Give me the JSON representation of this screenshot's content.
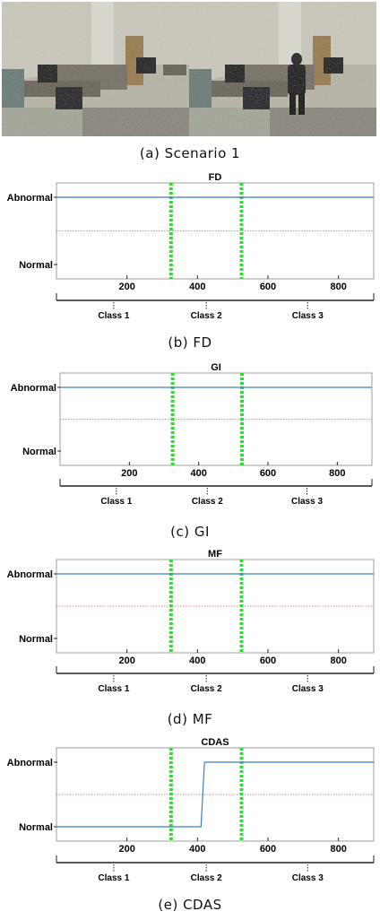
{
  "photos": {
    "caption": "(a) Scenario 1",
    "scene": "office-surveillance-frames",
    "frames": 2
  },
  "colors": {
    "signal": "#3a7fc1",
    "threshold": "#e06060",
    "class_boundary": "#2ee02e",
    "axis": "#222222"
  },
  "chart_data": [
    {
      "type": "line",
      "title": "FD",
      "caption": "(b) FD",
      "y_categories": [
        "Normal",
        "Abnormal"
      ],
      "xlim": [
        0,
        900
      ],
      "xticks": [
        200,
        400,
        600,
        800
      ],
      "x": [
        0,
        900
      ],
      "values": [
        1,
        1
      ],
      "threshold": 0.5,
      "class_boundaries": [
        325,
        525
      ],
      "classes": [
        {
          "label": "Class 1",
          "range": [
            0,
            325
          ]
        },
        {
          "label": "Class 2",
          "range": [
            325,
            525
          ]
        },
        {
          "label": "Class 3",
          "range": [
            525,
            900
          ]
        }
      ]
    },
    {
      "type": "line",
      "title": "GI",
      "caption": "(c) GI",
      "y_categories": [
        "Normal",
        "Abnormal"
      ],
      "xlim": [
        0,
        900
      ],
      "xticks": [
        200,
        400,
        600,
        800
      ],
      "x": [
        0,
        900
      ],
      "values": [
        1,
        1
      ],
      "threshold": 0.5,
      "class_boundaries": [
        325,
        525
      ],
      "classes": [
        {
          "label": "Class 1",
          "range": [
            0,
            325
          ]
        },
        {
          "label": "Class 2",
          "range": [
            325,
            525
          ]
        },
        {
          "label": "Class 3",
          "range": [
            525,
            900
          ]
        }
      ]
    },
    {
      "type": "line",
      "title": "MF",
      "caption": "(d) MF",
      "y_categories": [
        "Normal",
        "Abnormal"
      ],
      "xlim": [
        0,
        900
      ],
      "xticks": [
        200,
        400,
        600,
        800
      ],
      "x": [
        0,
        900
      ],
      "values": [
        1,
        1
      ],
      "threshold": 0.5,
      "class_boundaries": [
        325,
        525
      ],
      "classes": [
        {
          "label": "Class 1",
          "range": [
            0,
            325
          ]
        },
        {
          "label": "Class 2",
          "range": [
            325,
            525
          ]
        },
        {
          "label": "Class 3",
          "range": [
            525,
            900
          ]
        }
      ]
    },
    {
      "type": "line",
      "title": "CDAS",
      "caption": "(e) CDAS",
      "y_categories": [
        "Normal",
        "Abnormal"
      ],
      "xlim": [
        0,
        900
      ],
      "xticks": [
        200,
        400,
        600,
        800
      ],
      "x": [
        0,
        410,
        420,
        900
      ],
      "values": [
        0,
        0,
        1,
        1
      ],
      "threshold": 0.5,
      "class_boundaries": [
        325,
        525
      ],
      "classes": [
        {
          "label": "Class 1",
          "range": [
            0,
            325
          ]
        },
        {
          "label": "Class 2",
          "range": [
            325,
            525
          ]
        },
        {
          "label": "Class 3",
          "range": [
            525,
            900
          ]
        }
      ]
    }
  ]
}
